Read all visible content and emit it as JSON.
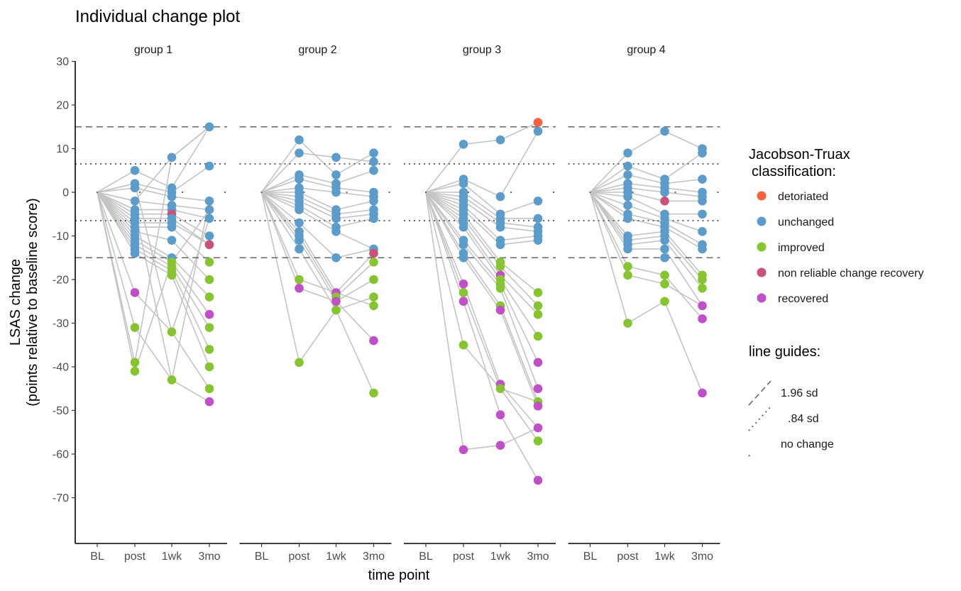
{
  "colors": {
    "detoriated": "#f4633d",
    "unchanged": "#5b9ccb",
    "improved": "#86c530",
    "non reliable change recovery": "#c9527a",
    "recovered": "#c150c8",
    "line": "#c4c4c4",
    "guide": "#666666"
  },
  "chart_data": {
    "type": "scatter",
    "title": "Individual change plot",
    "xlabel": "time point",
    "ylabel_line1": "LSAS change",
    "ylabel_line2": "(points relative to baseline score)",
    "x_categories": [
      "BL",
      "post",
      "1wk",
      "3mo"
    ],
    "y_ticks": [
      30,
      20,
      10,
      0,
      -10,
      -20,
      -30,
      -40,
      -50,
      -60,
      -70
    ],
    "ylim": [
      -80,
      30
    ],
    "guide_lines": [
      {
        "name": "1.96 sd",
        "values": [
          15,
          -15
        ],
        "style": "dashed"
      },
      {
        "name": ".84 sd",
        "values": [
          6.5,
          -6.5
        ],
        "style": "dotted"
      },
      {
        "name": "no change",
        "values": [
          0
        ],
        "style": "sparse-dotted"
      }
    ],
    "legend": {
      "title_line1": "Jacobson-Truax",
      "title_line2": "classification:",
      "entries": [
        "detoriated",
        "unchanged",
        "improved",
        "non reliable change recovery",
        "recovered"
      ]
    },
    "guides_legend": {
      "title": "line guides:",
      "entries": [
        "1.96 sd",
        ".84 sd",
        "no change"
      ]
    },
    "panels": [
      {
        "label": "group 1",
        "post": [
          5,
          2,
          1,
          -2,
          -4,
          -5,
          -6,
          -7,
          -8,
          -9,
          -10,
          -11,
          -12,
          -13,
          -14,
          -23,
          -31,
          -39,
          -41
        ],
        "post_class": [
          "U",
          "U",
          "U",
          "U",
          "U",
          "U",
          "U",
          "U",
          "U",
          "U",
          "U",
          "U",
          "U",
          "U",
          "U",
          "R",
          "I",
          "I",
          "I"
        ],
        "wk": [
          8,
          1,
          0,
          -1,
          -3,
          -4,
          -5,
          -6,
          -7,
          -8,
          -11,
          -15,
          -16,
          -17,
          -18,
          -19,
          -32,
          -43
        ],
        "wk_class": [
          "U",
          "U",
          "U",
          "U",
          "U",
          "U",
          "N",
          "U",
          "U",
          "U",
          "U",
          "U",
          "I",
          "I",
          "I",
          "I",
          "I",
          "I"
        ],
        "mo": [
          15,
          6,
          -2,
          -4,
          -6,
          -10,
          -12,
          -12,
          -16,
          -20,
          -24,
          -28,
          -31,
          -36,
          -40,
          -45,
          -48
        ],
        "mo_class": [
          "U",
          "U",
          "U",
          "U",
          "U",
          "U",
          "U",
          "N",
          "I",
          "I",
          "I",
          "R",
          "I",
          "I",
          "I",
          "I",
          "R"
        ],
        "links": [
          [
            0,
            1,
            0
          ],
          [
            1,
            2,
            1
          ],
          [
            2,
            3,
            2
          ],
          [
            3,
            4,
            3
          ],
          [
            4,
            5,
            4
          ],
          [
            5,
            6,
            5
          ],
          [
            6,
            7,
            6
          ],
          [
            7,
            8,
            7
          ],
          [
            8,
            9,
            8
          ],
          [
            9,
            10,
            9
          ],
          [
            10,
            11,
            10
          ],
          [
            11,
            12,
            11
          ],
          [
            12,
            13,
            12
          ],
          [
            13,
            14,
            13
          ],
          [
            14,
            15,
            14
          ],
          [
            15,
            16,
            15
          ],
          [
            16,
            17,
            16
          ],
          [
            17,
            0,
            0
          ],
          [
            18,
            12,
            3
          ],
          [
            3,
            0,
            0
          ],
          [
            4,
            17,
            2
          ],
          [
            1,
            16,
            4
          ]
        ]
      },
      {
        "label": "group 2",
        "post": [
          12,
          9,
          4,
          3,
          1,
          0,
          -1,
          -2,
          -3,
          -4,
          -7,
          -9,
          -10,
          -11,
          -13,
          -20,
          -22,
          -39
        ],
        "post_class": [
          "U",
          "U",
          "U",
          "U",
          "U",
          "U",
          "U",
          "U",
          "U",
          "U",
          "U",
          "U",
          "U",
          "U",
          "U",
          "I",
          "R",
          "I"
        ],
        "wk": [
          8,
          4,
          2,
          1,
          0,
          -4,
          -5,
          -6,
          -8,
          -9,
          -15,
          -23,
          -24,
          -25,
          -27
        ],
        "wk_class": [
          "U",
          "U",
          "U",
          "U",
          "U",
          "U",
          "U",
          "U",
          "U",
          "U",
          "U",
          "R",
          "I",
          "R",
          "I"
        ],
        "mo": [
          9,
          7,
          5,
          0,
          -1,
          -2,
          -4,
          -5,
          -6,
          -13,
          -14,
          -16,
          -20,
          -24,
          -26,
          -34,
          -46
        ],
        "mo_class": [
          "U",
          "U",
          "U",
          "U",
          "U",
          "U",
          "U",
          "U",
          "U",
          "U",
          "N",
          "I",
          "I",
          "I",
          "I",
          "R",
          "I"
        ],
        "links": [
          [
            0,
            1,
            0
          ],
          [
            1,
            0,
            1
          ],
          [
            2,
            2,
            2
          ],
          [
            3,
            3,
            3
          ],
          [
            4,
            4,
            4
          ],
          [
            5,
            5,
            5
          ],
          [
            6,
            6,
            6
          ],
          [
            7,
            7,
            7
          ],
          [
            8,
            8,
            8
          ],
          [
            9,
            9,
            9
          ],
          [
            10,
            10,
            9
          ],
          [
            11,
            11,
            10
          ],
          [
            12,
            12,
            11
          ],
          [
            13,
            13,
            12
          ],
          [
            14,
            14,
            13
          ],
          [
            15,
            11,
            14
          ],
          [
            16,
            13,
            15
          ],
          [
            17,
            14,
            16
          ]
        ]
      },
      {
        "label": "group 3",
        "post": [
          11,
          3,
          2,
          0,
          -1,
          -2,
          -3,
          -4,
          -5,
          -6,
          -7,
          -8,
          -11,
          -12,
          -14,
          -15,
          -21,
          -23,
          -25,
          -35,
          -59
        ],
        "post_class": [
          "U",
          "U",
          "U",
          "U",
          "U",
          "U",
          "U",
          "U",
          "U",
          "U",
          "U",
          "U",
          "U",
          "U",
          "U",
          "U",
          "R",
          "I",
          "R",
          "I",
          "R"
        ],
        "wk": [
          12,
          -1,
          -5,
          -6,
          -7,
          -8,
          -11,
          -12,
          -16,
          -17,
          -19,
          -20,
          -21,
          -22,
          -26,
          -27,
          -44,
          -45,
          -51,
          -58
        ],
        "wk_class": [
          "U",
          "U",
          "U",
          "U",
          "U",
          "U",
          "U",
          "U",
          "I",
          "I",
          "R",
          "I",
          "I",
          "I",
          "I",
          "R",
          "R",
          "I",
          "R",
          "R"
        ],
        "mo": [
          16,
          14,
          -2,
          -6,
          -8,
          -9,
          -10,
          -11,
          -23,
          -26,
          -28,
          -33,
          -39,
          -45,
          -48,
          -49,
          -54,
          -57,
          -66
        ],
        "mo_class": [
          "D",
          "U",
          "U",
          "U",
          "U",
          "U",
          "U",
          "U",
          "I",
          "I",
          "I",
          "I",
          "R",
          "R",
          "I",
          "R",
          "R",
          "I",
          "R"
        ],
        "links": [
          [
            0,
            0,
            0
          ],
          [
            1,
            1,
            1
          ],
          [
            2,
            2,
            2
          ],
          [
            3,
            3,
            3
          ],
          [
            4,
            4,
            4
          ],
          [
            5,
            5,
            5
          ],
          [
            6,
            6,
            6
          ],
          [
            7,
            7,
            7
          ],
          [
            8,
            8,
            8
          ],
          [
            9,
            9,
            9
          ],
          [
            10,
            10,
            10
          ],
          [
            11,
            11,
            11
          ],
          [
            12,
            12,
            12
          ],
          [
            13,
            13,
            13
          ],
          [
            14,
            14,
            14
          ],
          [
            15,
            15,
            15
          ],
          [
            16,
            16,
            16
          ],
          [
            17,
            17,
            17
          ],
          [
            18,
            18,
            18
          ],
          [
            19,
            17,
            14
          ],
          [
            20,
            19,
            16
          ]
        ]
      },
      {
        "label": "group 4",
        "post": [
          9,
          6,
          4,
          2,
          1,
          0,
          -1,
          -3,
          -5,
          -6,
          -10,
          -11,
          -12,
          -13,
          -17,
          -19,
          -30
        ],
        "post_class": [
          "U",
          "U",
          "U",
          "U",
          "U",
          "U",
          "U",
          "U",
          "U",
          "U",
          "U",
          "U",
          "U",
          "U",
          "I",
          "I",
          "I"
        ],
        "wk": [
          14,
          3,
          2,
          1,
          0,
          -2,
          -5,
          -6,
          -7,
          -8,
          -9,
          -10,
          -11,
          -13,
          -15,
          -19,
          -21,
          -25
        ],
        "wk_class": [
          "U",
          "U",
          "U",
          "U",
          "U",
          "N",
          "U",
          "U",
          "U",
          "U",
          "U",
          "U",
          "U",
          "U",
          "U",
          "I",
          "I",
          "I"
        ],
        "mo": [
          10,
          9,
          3,
          0,
          -1,
          -2,
          -5,
          -9,
          -12,
          -13,
          -19,
          -20,
          -22,
          -26,
          -29,
          -46
        ],
        "mo_class": [
          "U",
          "U",
          "U",
          "U",
          "U",
          "U",
          "U",
          "U",
          "U",
          "U",
          "I",
          "I",
          "I",
          "R",
          "R",
          "R"
        ],
        "links": [
          [
            0,
            0,
            0
          ],
          [
            1,
            1,
            1
          ],
          [
            2,
            2,
            2
          ],
          [
            3,
            3,
            3
          ],
          [
            4,
            4,
            4
          ],
          [
            5,
            5,
            5
          ],
          [
            6,
            6,
            6
          ],
          [
            7,
            7,
            7
          ],
          [
            8,
            8,
            8
          ],
          [
            9,
            9,
            9
          ],
          [
            10,
            10,
            10
          ],
          [
            11,
            11,
            11
          ],
          [
            12,
            12,
            12
          ],
          [
            13,
            13,
            13
          ],
          [
            14,
            15,
            14
          ],
          [
            15,
            16,
            13
          ],
          [
            16,
            17,
            15
          ]
        ]
      }
    ]
  }
}
